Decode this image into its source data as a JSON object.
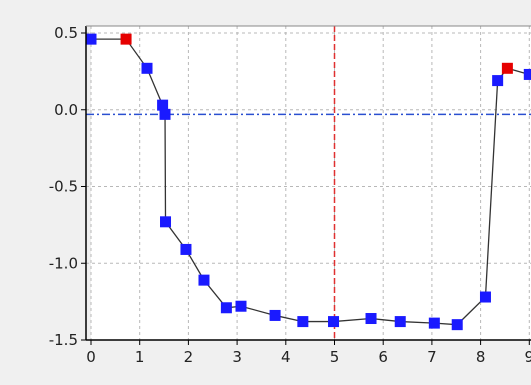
{
  "chart_data": {
    "type": "scatter",
    "title": "",
    "xlabel": "",
    "ylabel": "",
    "xlim": [
      0,
      9
    ],
    "ylim": [
      -1.5,
      0.5
    ],
    "x_ticks": [
      "0",
      "1",
      "2",
      "3",
      "4",
      "5",
      "6",
      "7",
      "8",
      "9"
    ],
    "y_ticks": [
      "0.5",
      "0.0",
      "-0.5",
      "-1.0",
      "-1.5"
    ],
    "grid": true,
    "reference_lines": {
      "vertical_x": 5,
      "horizontal_y": -0.03
    },
    "series": [
      {
        "values": [
          {
            "x": 0.0,
            "y": 0.46,
            "highlight": false
          },
          {
            "x": 0.72,
            "y": 0.46,
            "highlight": true
          },
          {
            "x": 1.15,
            "y": 0.27,
            "highlight": false
          },
          {
            "x": 1.47,
            "y": 0.03,
            "highlight": false
          },
          {
            "x": 1.52,
            "y": -0.03,
            "highlight": false
          },
          {
            "x": 1.53,
            "y": -0.73,
            "highlight": false
          },
          {
            "x": 1.95,
            "y": -0.91,
            "highlight": false
          },
          {
            "x": 2.32,
            "y": -1.11,
            "highlight": false
          },
          {
            "x": 2.78,
            "y": -1.29,
            "highlight": false
          },
          {
            "x": 3.08,
            "y": -1.28,
            "highlight": false
          },
          {
            "x": 3.78,
            "y": -1.34,
            "highlight": false
          },
          {
            "x": 4.35,
            "y": -1.38,
            "highlight": false
          },
          {
            "x": 4.98,
            "y": -1.38,
            "highlight": false
          },
          {
            "x": 5.75,
            "y": -1.36,
            "highlight": false
          },
          {
            "x": 6.35,
            "y": -1.38,
            "highlight": false
          },
          {
            "x": 7.05,
            "y": -1.39,
            "highlight": false
          },
          {
            "x": 7.52,
            "y": -1.4,
            "highlight": false
          },
          {
            "x": 8.1,
            "y": -1.22,
            "highlight": false
          },
          {
            "x": 8.35,
            "y": 0.19,
            "highlight": false
          },
          {
            "x": 8.55,
            "y": 0.27,
            "highlight": true
          },
          {
            "x": 9.0,
            "y": 0.23,
            "highlight": false
          }
        ]
      }
    ],
    "colors": {
      "marker": "#1a1aff",
      "highlight": "#e60000",
      "line": "#333333",
      "vertical_ref": "#e03030",
      "horizontal_ref": "#2a4fd0",
      "grid": "#b8b8b8",
      "plot_bg": "#ffffff"
    }
  }
}
